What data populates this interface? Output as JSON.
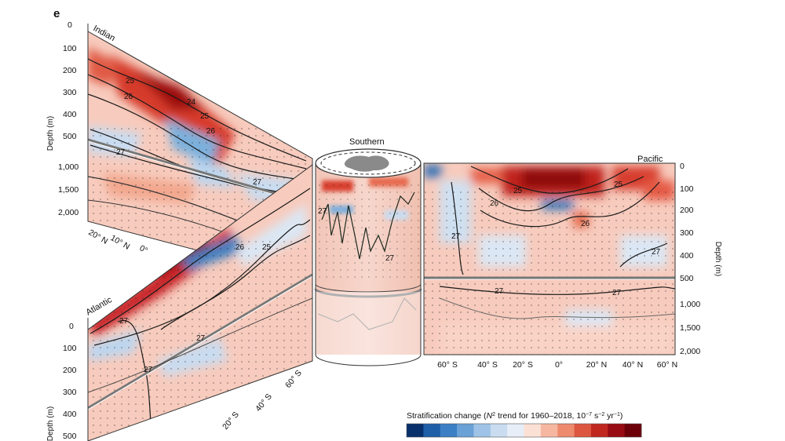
{
  "panel_letter": "e",
  "basins": {
    "indian": "Indian",
    "southern": "Southern",
    "pacific": "Pacific",
    "atlantic": "Atlantic"
  },
  "axis_title": "Depth (m)",
  "depth_ticks_upper": [
    "0",
    "100",
    "200",
    "300",
    "400",
    "500"
  ],
  "depth_ticks_lower": [
    "1,000",
    "1,500",
    "2,000"
  ],
  "indian_lat_ticks": [
    "20° N",
    "10° N",
    "0°"
  ],
  "atlantic_lat_ticks": [
    "20° S",
    "40° S",
    "60° S"
  ],
  "pacific_lat_ticks": [
    "60° S",
    "40° S",
    "20° S",
    "0°",
    "20° N",
    "40° N",
    "60° N"
  ],
  "contour_labels": {
    "indian": [
      "25",
      "26",
      "24",
      "25",
      "26",
      "27",
      "27"
    ],
    "atlantic": [
      "26",
      "25",
      "27",
      "27",
      "27"
    ],
    "southern": [
      "27",
      "27"
    ],
    "pacific": [
      "25",
      "26",
      "25",
      "26",
      "27",
      "27",
      "27",
      "27"
    ]
  },
  "colorbar": {
    "title_prefix": "Stratification change (",
    "title_symbol": "N",
    "title_superscript": "2",
    "title_suffix": " trend for 1960–2018, 10",
    "title_exp1": "−7",
    "title_unit": " s",
    "title_exp2": "−2",
    "title_unit2": " yr",
    "title_exp3": "−1",
    "title_close": ")",
    "colors": [
      "#08306b",
      "#1f5fa8",
      "#3b7fc4",
      "#6aa1d6",
      "#9ec3e6",
      "#c9dcf0",
      "#e8eef7",
      "#fbe0d4",
      "#f6b7a0",
      "#ee8a6e",
      "#dd5640",
      "#c0281f",
      "#960c12",
      "#6b0009"
    ]
  }
}
